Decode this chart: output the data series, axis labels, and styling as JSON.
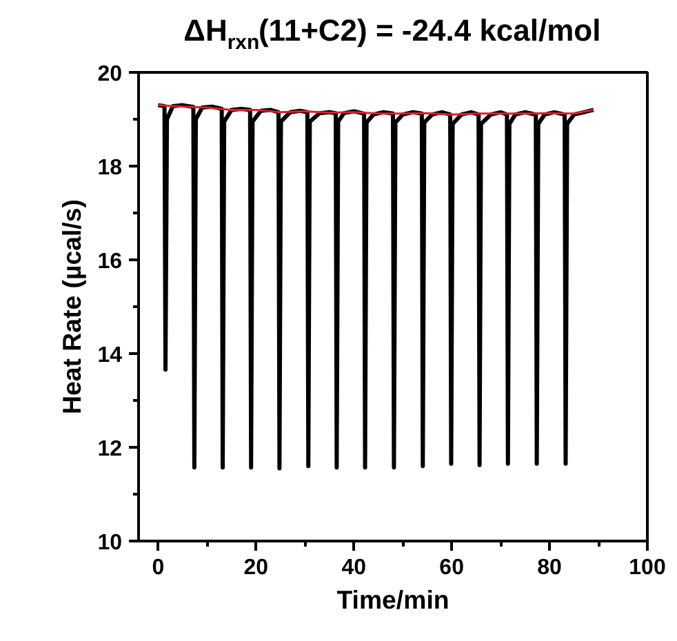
{
  "chart_data": {
    "type": "line",
    "title": "ΔH$_{rxn}$(11+C2) = -24.4 kcal/mol",
    "xlabel": "Time/min",
    "ylabel": "Heat Rate (µcal/s)",
    "xlim": [
      -4,
      100
    ],
    "ylim": [
      10,
      20
    ],
    "xticks": [
      0,
      {
        "value": 10,
        "label": null
      },
      20,
      {
        "value": 30,
        "label": null
      },
      40,
      {
        "value": 50,
        "label": null
      },
      60,
      {
        "value": 70,
        "label": null
      },
      80,
      {
        "value": 90,
        "label": null
      },
      100
    ],
    "yticks": [
      10,
      {
        "value": 11,
        "label": null
      },
      12,
      {
        "value": 13,
        "label": null
      },
      14,
      {
        "value": 15,
        "label": null
      },
      16,
      {
        "value": 17,
        "label": null
      },
      18,
      {
        "value": 19,
        "label": null
      },
      20
    ],
    "grid": false,
    "marker": "none",
    "line_style": "solid",
    "series": [
      {
        "color": "#000000",
        "x": [
          0,
          1.3,
          1.5,
          1.8,
          3,
          5,
          7.2,
          7.4,
          7.7,
          9,
          11,
          13.0,
          13.2,
          13.5,
          15,
          17,
          18.8,
          19.0,
          19.3,
          21,
          23,
          24.6,
          24.8,
          25.1,
          27,
          29,
          30.5,
          30.7,
          31.0,
          33,
          35,
          36.3,
          36.5,
          36.8,
          38,
          40,
          42.1,
          42.3,
          42.6,
          44,
          46,
          48.0,
          48.2,
          48.5,
          50,
          52,
          53.9,
          54.1,
          54.4,
          56,
          58,
          59.7,
          59.9,
          60.2,
          62,
          64,
          65.5,
          65.7,
          66.0,
          68,
          70,
          71.3,
          71.5,
          71.8,
          73,
          75,
          77.2,
          77.4,
          77.7,
          79,
          81,
          83.1,
          83.3,
          83.6,
          85,
          87,
          89
        ],
        "values": [
          19.3,
          19.28,
          13.66,
          19.0,
          19.28,
          19.3,
          19.26,
          11.57,
          19.0,
          19.25,
          19.27,
          19.22,
          11.57,
          18.95,
          19.2,
          19.22,
          19.2,
          11.57,
          18.95,
          19.18,
          19.2,
          19.15,
          11.55,
          18.95,
          19.15,
          19.18,
          19.15,
          11.6,
          18.95,
          19.13,
          19.15,
          19.13,
          11.57,
          18.95,
          19.13,
          19.17,
          19.12,
          11.57,
          18.93,
          19.1,
          19.15,
          19.12,
          11.57,
          18.93,
          19.1,
          19.15,
          19.12,
          11.6,
          18.93,
          19.1,
          19.15,
          19.1,
          11.65,
          18.9,
          19.1,
          19.15,
          19.1,
          11.62,
          18.9,
          19.1,
          19.15,
          19.1,
          11.65,
          18.9,
          19.1,
          19.15,
          19.1,
          11.65,
          18.9,
          19.1,
          19.15,
          19.1,
          11.65,
          18.9,
          19.1,
          19.15,
          19.2
        ]
      },
      {
        "color": "#e0202a",
        "x": [
          0,
          5,
          10,
          15,
          20,
          25,
          30,
          35,
          40,
          45,
          50,
          55,
          60,
          65,
          70,
          75,
          80,
          85,
          89
        ],
        "values": [
          19.3,
          19.27,
          19.25,
          19.2,
          19.2,
          19.15,
          19.17,
          19.14,
          19.15,
          19.12,
          19.12,
          19.13,
          19.1,
          19.12,
          19.12,
          19.12,
          19.13,
          19.12,
          19.2
        ]
      }
    ]
  }
}
